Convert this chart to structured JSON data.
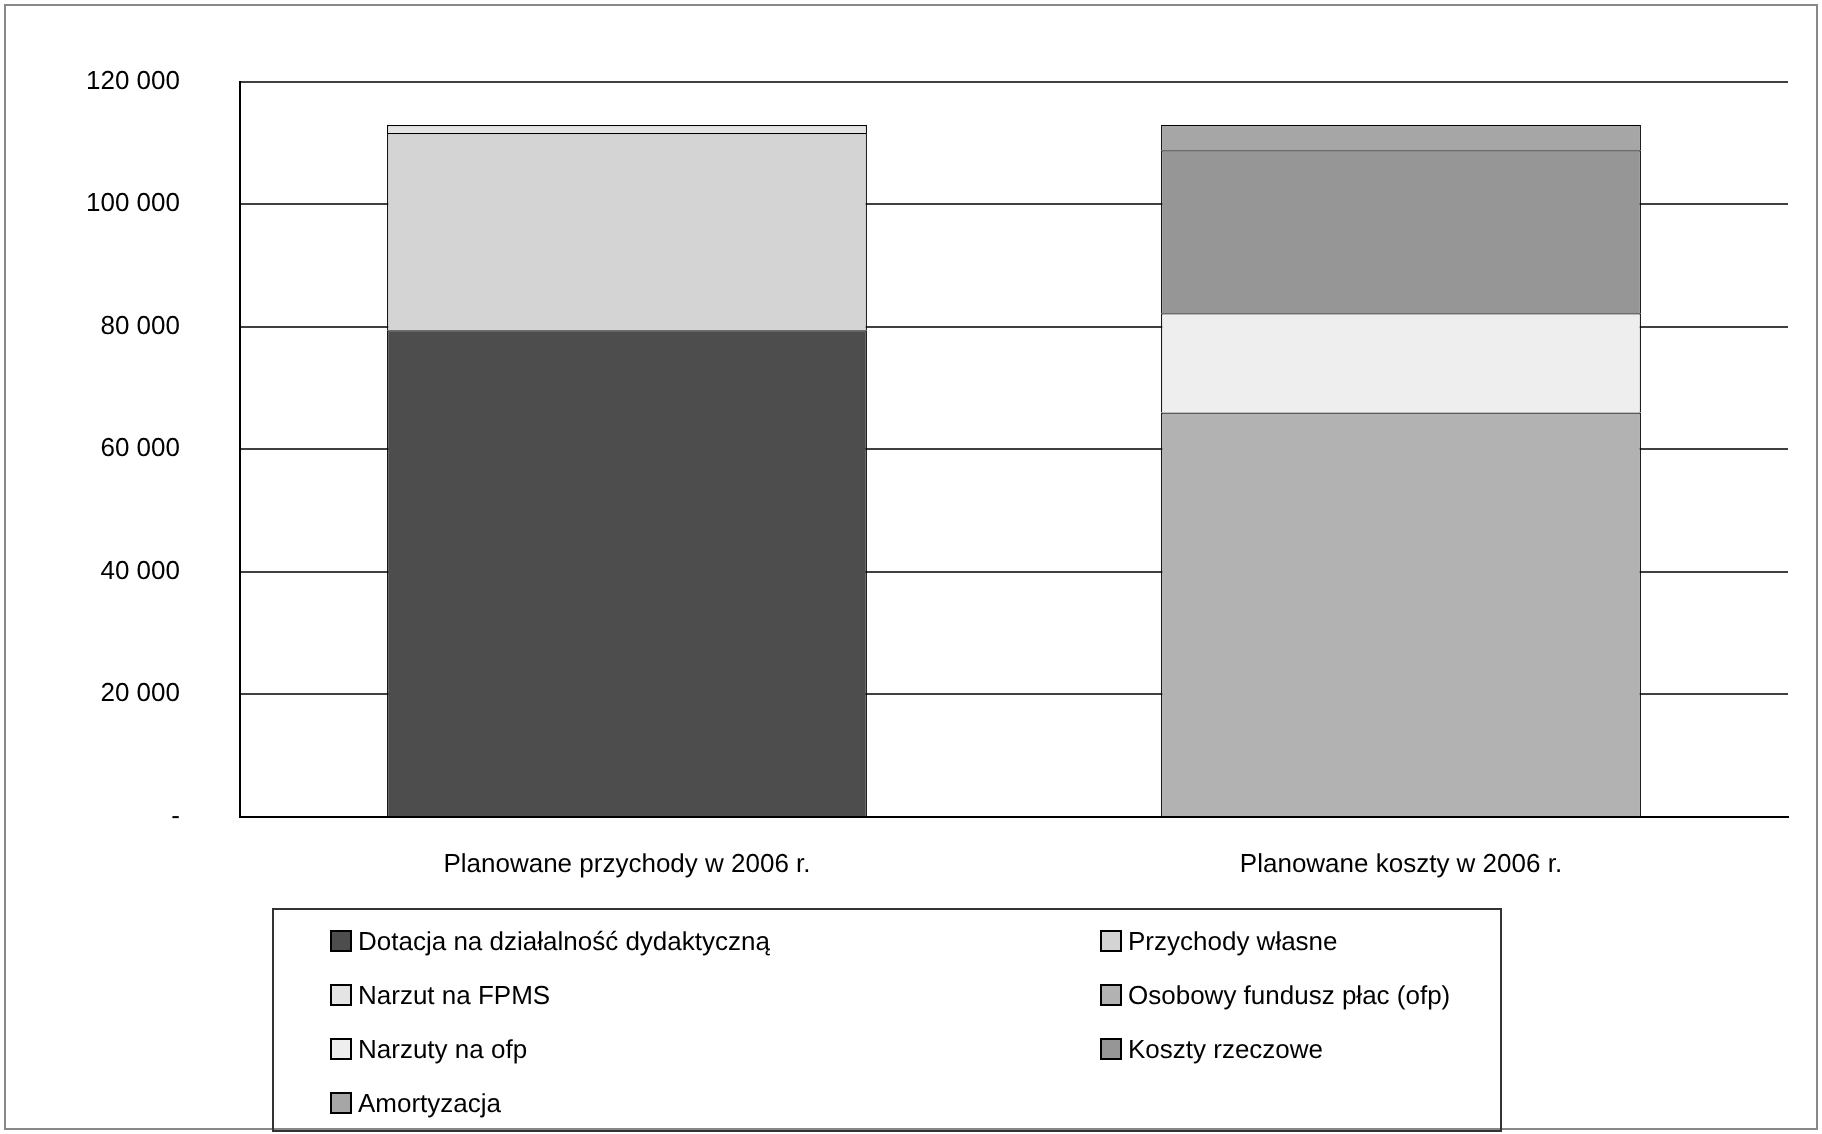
{
  "chart_data": {
    "type": "bar",
    "stacked": true,
    "categories": [
      "Planowane przychody w 2006 r.",
      "Planowane koszty w 2006 r."
    ],
    "series": [
      {
        "name": "Dotacja na działalność dydaktyczną",
        "color": "#4d4d4d",
        "values": [
          79400,
          null
        ]
      },
      {
        "name": "Przychody własne",
        "color": "#d4d4d4",
        "values": [
          32200,
          null
        ]
      },
      {
        "name": "Narzut na FPMS",
        "color": "#e4e4e4",
        "values": [
          1300,
          null
        ]
      },
      {
        "name": "Osobowy fundusz płac (ofp)",
        "color": "#b2b2b2",
        "values": [
          null,
          66000
        ]
      },
      {
        "name": "Narzuty na ofp",
        "color": "#eeeeee",
        "values": [
          null,
          16200
        ]
      },
      {
        "name": "Koszty rzeczowe",
        "color": "#969696",
        "values": [
          null,
          26600
        ]
      },
      {
        "name": "Amortyzacja",
        "color": "#a6a6a6",
        "values": [
          null,
          4100
        ]
      }
    ],
    "ylim": [
      0,
      120000
    ],
    "yticks": [
      {
        "value": 0,
        "label": "-"
      },
      {
        "value": 20000,
        "label": "20 000"
      },
      {
        "value": 40000,
        "label": "40 000"
      },
      {
        "value": 60000,
        "label": "60 000"
      },
      {
        "value": 80000,
        "label": "80 000"
      },
      {
        "value": 100000,
        "label": "100 000"
      },
      {
        "value": 120000,
        "label": "120 000"
      }
    ],
    "grid": "y",
    "legend": "bottom"
  }
}
